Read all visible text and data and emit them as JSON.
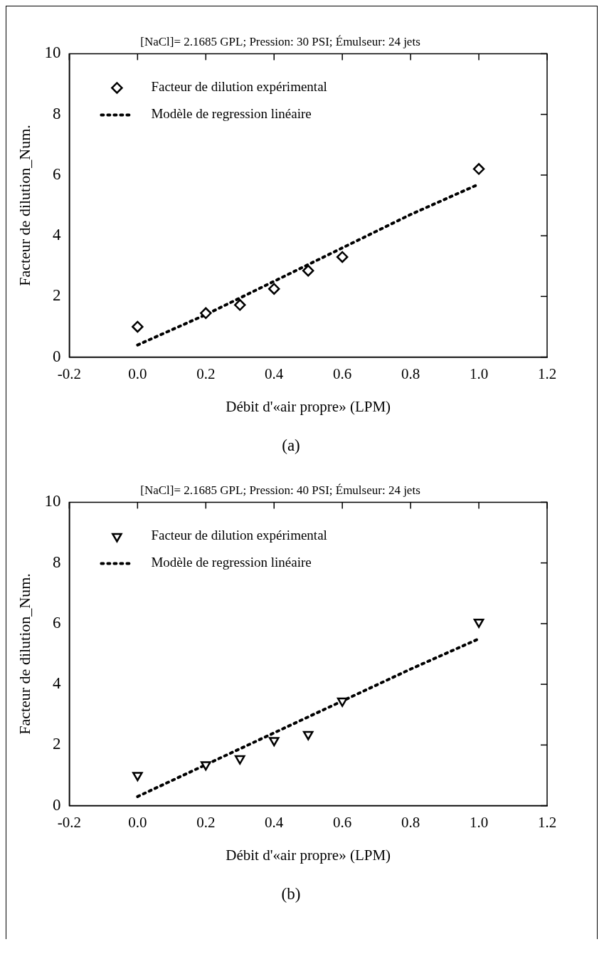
{
  "chart_data": [
    {
      "type": "scatter",
      "title": "[NaCl]= 2.1685 GPL; Pression: 30 PSI; Émulseur: 24 jets",
      "xlabel": "Débit d'«air propre» (LPM)",
      "ylabel": "Facteur de dilution_Num.",
      "annotations": [
        "(a)"
      ],
      "xlim": [
        -0.2,
        1.2
      ],
      "xticks": [
        {
          "value": -0.2,
          "label": "-0.2"
        },
        {
          "value": 0,
          "label": "0.0"
        },
        {
          "value": 0.2,
          "label": "0.2"
        },
        {
          "value": 0.4,
          "label": "0.4"
        },
        {
          "value": 0.6,
          "label": "0.6"
        },
        {
          "value": 0.8,
          "label": "0.8"
        },
        {
          "value": 1,
          "label": "1.0"
        },
        {
          "value": 1.2,
          "label": "1.2"
        }
      ],
      "ylim": [
        0,
        10
      ],
      "yticks": [
        0,
        2,
        4,
        6,
        8,
        10
      ],
      "grid": false,
      "legend": "top left",
      "series": [
        {
          "name": "Facteur de dilution expérimental",
          "type": "scatter",
          "marker": "diamond",
          "color": "#000000",
          "x": [
            0,
            0.2,
            0.3,
            0.4,
            0.5,
            0.6,
            1.0
          ],
          "values": [
            1.0,
            1.45,
            1.72,
            2.25,
            2.85,
            3.3,
            6.2
          ]
        },
        {
          "name": "Modèle de regression linéaire",
          "type": "line",
          "line_style": "dotted",
          "marker": "none",
          "color": "#000000",
          "x": [
            0,
            0.2,
            0.4,
            0.6,
            0.8,
            1.0
          ],
          "values": [
            0.4,
            1.4,
            2.5,
            3.6,
            4.7,
            5.7
          ]
        }
      ]
    },
    {
      "type": "scatter",
      "title": "[NaCl]= 2.1685 GPL; Pression: 40 PSI; Émulseur: 24 jets",
      "xlabel": "Débit d'«air propre» (LPM)",
      "ylabel": "Facteur de dilution_Num.",
      "annotations": [
        "(b)"
      ],
      "xlim": [
        -0.2,
        1.2
      ],
      "xticks": [
        {
          "value": -0.2,
          "label": "-0.2"
        },
        {
          "value": 0,
          "label": "0.0"
        },
        {
          "value": 0.2,
          "label": "0.2"
        },
        {
          "value": 0.4,
          "label": "0.4"
        },
        {
          "value": 0.6,
          "label": "0.6"
        },
        {
          "value": 0.8,
          "label": "0.8"
        },
        {
          "value": 1,
          "label": "1.0"
        },
        {
          "value": 1.2,
          "label": "1.2"
        }
      ],
      "ylim": [
        0,
        10
      ],
      "yticks": [
        0,
        2,
        4,
        6,
        8,
        10
      ],
      "grid": false,
      "legend": "top left",
      "series": [
        {
          "name": "Facteur de dilution expérimental",
          "type": "scatter",
          "marker": "triangle",
          "color": "#000000",
          "x": [
            0,
            0.2,
            0.3,
            0.4,
            0.5,
            0.6,
            1.0
          ],
          "values": [
            1.0,
            1.35,
            1.55,
            2.15,
            2.35,
            3.45,
            6.05
          ]
        },
        {
          "name": "Modèle de regression linéaire",
          "type": "line",
          "line_style": "dotted",
          "marker": "none",
          "color": "#000000",
          "x": [
            0,
            0.2,
            0.4,
            0.6,
            0.8,
            1.0
          ],
          "values": [
            0.3,
            1.35,
            2.4,
            3.45,
            4.5,
            5.5
          ]
        }
      ]
    }
  ]
}
